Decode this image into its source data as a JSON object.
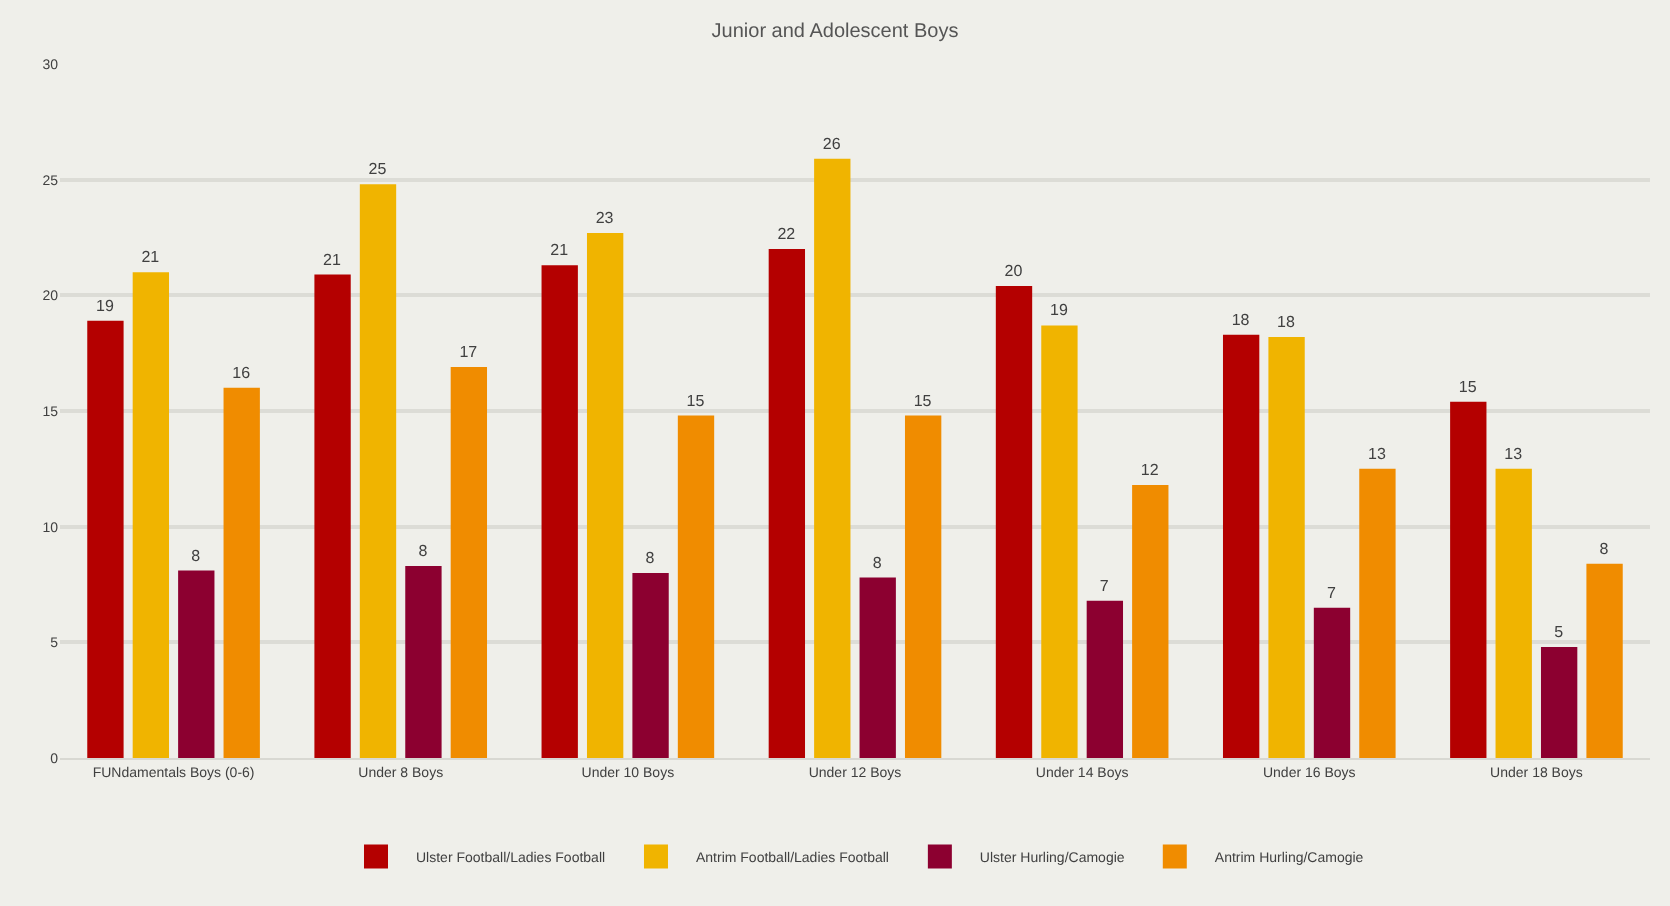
{
  "chart_data": {
    "type": "bar",
    "title": "Junior and Adolescent Boys",
    "categories": [
      "FUNdamentals Boys (0-6)",
      "Under 8 Boys",
      "Under 10 Boys",
      "Under 12 Boys",
      "Under 14 Boys",
      "Under 16 Boys",
      "Under 18 Boys"
    ],
    "series": [
      {
        "name": "Ulster Football/Ladies Football",
        "color": "#b40000",
        "values": [
          18.9,
          20.9,
          21.3,
          22.0,
          20.4,
          18.3,
          15.4
        ],
        "value_labels": [
          "19",
          "21",
          "21",
          "22",
          "20",
          "18",
          "15"
        ]
      },
      {
        "name": "Antrim Football/Ladies Football",
        "color": "#f0b400",
        "values": [
          21.0,
          24.8,
          22.7,
          25.9,
          18.7,
          18.2,
          12.5
        ],
        "value_labels": [
          "21",
          "25",
          "23",
          "26",
          "19",
          "18",
          "13"
        ]
      },
      {
        "name": "Ulster Hurling/Camogie",
        "color": "#8c0030",
        "values": [
          8.1,
          8.3,
          8.0,
          7.8,
          6.8,
          6.5,
          4.8
        ],
        "value_labels": [
          "8",
          "8",
          "8",
          "8",
          "7",
          "7",
          "5"
        ]
      },
      {
        "name": "Antrim Hurling/Camogie",
        "color": "#f08c00",
        "values": [
          16.0,
          16.9,
          14.8,
          14.8,
          11.8,
          12.5,
          8.4
        ],
        "value_labels": [
          "16",
          "17",
          "15",
          "15",
          "12",
          "13",
          "8"
        ]
      }
    ],
    "ylim": [
      0,
      30
    ],
    "yticks": [
      0,
      5,
      10,
      15,
      20,
      25,
      30
    ],
    "grid": "y",
    "legend": "bottom"
  }
}
